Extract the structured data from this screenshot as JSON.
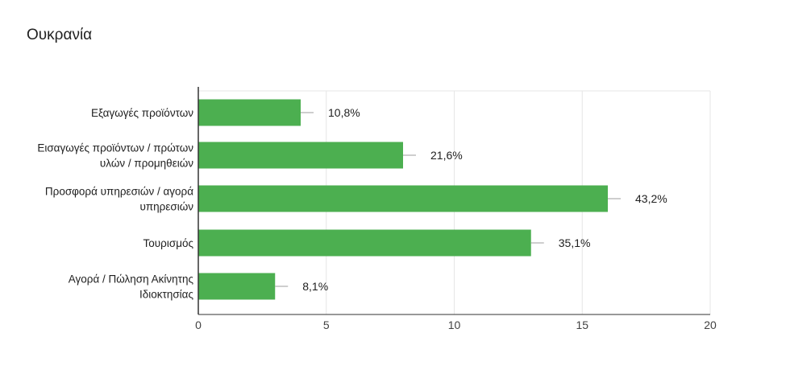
{
  "chart_data": {
    "type": "bar",
    "orientation": "horizontal",
    "title": "Ουκρανία",
    "categories": [
      [
        "Εξαγωγές προϊόντων"
      ],
      [
        "Εισαγωγές προϊόντων / πρώτων",
        "υλών / προμηθειών"
      ],
      [
        "Προσφορά υπηρεσιών / αγορά",
        "υπηρεσιών"
      ],
      [
        "Τουρισμός"
      ],
      [
        "Αγορά / Πώληση Ακίνητης",
        "Ιδιοκτησίας"
      ]
    ],
    "values": [
      4,
      8,
      16,
      13,
      3
    ],
    "data_labels": [
      "10,8%",
      "21,6%",
      "43,2%",
      "35,1%",
      "8,1%"
    ],
    "xlim": [
      0,
      20
    ],
    "x_ticks": [
      "0",
      "5",
      "10",
      "15",
      "20"
    ],
    "x_tick_values": [
      0,
      5,
      10,
      15,
      20
    ],
    "grid": true,
    "bar_color": "#4caf50",
    "xlabel": "",
    "ylabel": ""
  }
}
